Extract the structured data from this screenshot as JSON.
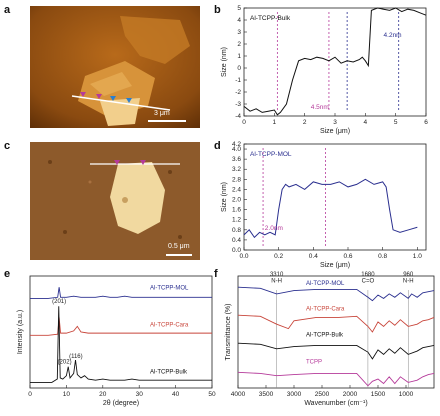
{
  "panels": {
    "a": {
      "label": "a",
      "scale_bar": "3 μm"
    },
    "b": {
      "label": "b"
    },
    "c": {
      "label": "c",
      "scale_bar": "0.5 μm"
    },
    "d": {
      "label": "d"
    },
    "e": {
      "label": "e"
    },
    "f": {
      "label": "f"
    }
  },
  "chart_data": [
    {
      "id": "b",
      "type": "line",
      "title": "Al-TCPP-Bulk",
      "xlabel": "Size (μm)",
      "ylabel": "Size (nm)",
      "xlim": [
        0,
        6
      ],
      "ylim": [
        -4,
        5
      ],
      "x_ticks": [
        "0",
        "1",
        "2",
        "3",
        "4",
        "5",
        "6"
      ],
      "y_ticks": [
        "-4",
        "-3",
        "-2",
        "-1",
        "0",
        "1",
        "2",
        "3",
        "4",
        "5"
      ],
      "series": [
        {
          "color": "#111111",
          "x": [
            0,
            0.2,
            0.4,
            0.6,
            0.8,
            1.0,
            1.1,
            1.2,
            1.4,
            1.6,
            1.8,
            2.0,
            2.2,
            2.4,
            2.6,
            2.8,
            3.0,
            3.2,
            3.4,
            3.6,
            3.8,
            3.9,
            4.0,
            4.1,
            4.2,
            4.4,
            4.6,
            4.8,
            5.0,
            5.2,
            5.4,
            5.6,
            5.8,
            6.0
          ],
          "values": [
            -3.2,
            -3.6,
            -3.4,
            -3.7,
            -3.6,
            -3.5,
            -3.9,
            -3.7,
            -3.0,
            -1.0,
            0.6,
            0.8,
            0.7,
            0.9,
            0.8,
            0.6,
            0.9,
            0.4,
            0.6,
            0.5,
            0.7,
            0.9,
            0.6,
            0.2,
            4.8,
            5.0,
            4.9,
            4.8,
            5.0,
            4.7,
            4.9,
            4.8,
            4.6,
            4.4
          ]
        }
      ],
      "annotations": [
        {
          "text": "4.5nm",
          "x": 2.2,
          "y": -3.4,
          "color": "#b53a9a"
        },
        {
          "text": "4.2nm",
          "x": 4.6,
          "y": 2.6,
          "color": "#2a2f8f"
        }
      ],
      "markers": [
        {
          "x": 1.1,
          "color": "#b53a9a"
        },
        {
          "x": 2.8,
          "color": "#b53a9a"
        },
        {
          "x": 3.4,
          "color": "#2a2f8f"
        },
        {
          "x": 5.1,
          "color": "#2a2f8f"
        }
      ]
    },
    {
      "id": "d",
      "type": "line",
      "title": "Al-TCPP-MOL",
      "xlabel": "Size (μm)",
      "ylabel": "Size (nm)",
      "xlim": [
        0,
        1.05
      ],
      "ylim": [
        0,
        4.2
      ],
      "x_ticks": [
        "0.0",
        "0.2",
        "0.4",
        "0.6",
        "0.8",
        "1.0"
      ],
      "y_ticks": [
        "0.0",
        "0.4",
        "0.8",
        "1.2",
        "1.6",
        "2.0",
        "2.4",
        "2.8",
        "3.2",
        "3.6",
        "4.0",
        "4.2"
      ],
      "series": [
        {
          "color": "#2a2f8f",
          "x": [
            0.0,
            0.03,
            0.06,
            0.09,
            0.12,
            0.15,
            0.18,
            0.2,
            0.22,
            0.24,
            0.26,
            0.3,
            0.35,
            0.4,
            0.45,
            0.5,
            0.55,
            0.6,
            0.65,
            0.7,
            0.75,
            0.8,
            0.82,
            0.84,
            0.86,
            0.9,
            0.95,
            1.0
          ],
          "values": [
            0.6,
            0.8,
            0.5,
            0.7,
            0.6,
            0.7,
            0.6,
            1.6,
            2.4,
            2.6,
            2.5,
            2.6,
            2.4,
            2.7,
            2.6,
            2.6,
            2.7,
            2.5,
            2.6,
            2.8,
            2.6,
            2.7,
            2.5,
            1.6,
            0.8,
            0.7,
            0.8,
            0.9
          ]
        }
      ],
      "annotations": [
        {
          "text": "2.0nm",
          "x": 0.12,
          "y": 0.8,
          "color": "#b53a9a"
        }
      ],
      "markers": [
        {
          "x": 0.11,
          "color": "#b53a9a"
        },
        {
          "x": 0.47,
          "color": "#b53a9a"
        }
      ]
    },
    {
      "id": "e",
      "type": "line",
      "xlabel": "2θ (degree)",
      "ylabel": "Intensity (a.u.)",
      "xlim": [
        0,
        50
      ],
      "x_ticks": [
        "0",
        "10",
        "20",
        "30",
        "40",
        "50"
      ],
      "series": [
        {
          "name": "Al-TCPP-MOL",
          "color": "#2a2f8f",
          "offset": 0.78,
          "x": [
            0,
            5,
            7.6,
            8,
            8.4,
            10,
            12,
            14,
            16,
            18,
            20,
            22,
            24,
            26,
            28,
            30,
            32,
            34,
            36,
            38,
            40,
            42,
            44,
            46,
            48,
            50
          ],
          "values": [
            0.02,
            0.02,
            0.03,
            0.12,
            0.03,
            0.03,
            0.04,
            0.03,
            0.03,
            0.03,
            0.04,
            0.03,
            0.03,
            0.04,
            0.03,
            0.03,
            0.03,
            0.03,
            0.03,
            0.03,
            0.03,
            0.03,
            0.03,
            0.03,
            0.03,
            0.03
          ]
        },
        {
          "name": "Al-TCPP-Cara",
          "color": "#c8453a",
          "offset": 0.45,
          "x": [
            0,
            5,
            7.6,
            8,
            8.4,
            10,
            12,
            13,
            14,
            16,
            18,
            20,
            22,
            24,
            26,
            28,
            30,
            32,
            34,
            36,
            38,
            40,
            42,
            44,
            46,
            48,
            50
          ],
          "values": [
            0.02,
            0.02,
            0.03,
            0.18,
            0.04,
            0.04,
            0.06,
            0.1,
            0.05,
            0.04,
            0.04,
            0.04,
            0.04,
            0.04,
            0.04,
            0.04,
            0.04,
            0.04,
            0.04,
            0.04,
            0.04,
            0.04,
            0.04,
            0.04,
            0.04,
            0.04,
            0.04
          ]
        },
        {
          "name": "Al-TCPP-Bulk",
          "color": "#111111",
          "offset": 0.03,
          "x": [
            0,
            6,
            7.5,
            7.9,
            8.3,
            9,
            10,
            10.5,
            11,
            12,
            12.5,
            13,
            14,
            15,
            16,
            18,
            20,
            22,
            24,
            26,
            28,
            30,
            32,
            34,
            36,
            38,
            40,
            42,
            44,
            46,
            48,
            50
          ],
          "values": [
            0.02,
            0.02,
            0.05,
            0.7,
            0.06,
            0.05,
            0.08,
            0.16,
            0.06,
            0.1,
            0.22,
            0.09,
            0.06,
            0.08,
            0.05,
            0.04,
            0.05,
            0.04,
            0.04,
            0.04,
            0.05,
            0.04,
            0.04,
            0.04,
            0.04,
            0.04,
            0.04,
            0.04,
            0.04,
            0.04,
            0.04,
            0.04
          ]
        }
      ],
      "annotations": [
        {
          "text": "(201)",
          "x": 8,
          "y": 0.76
        },
        {
          "text": "(202)",
          "x": 9.5,
          "y": 0.22
        },
        {
          "text": "(116)",
          "x": 12.6,
          "y": 0.27
        }
      ]
    },
    {
      "id": "f",
      "type": "line",
      "xlabel": "Wavenumber (cm⁻¹)",
      "ylabel": "Transmittance (%)",
      "xlim": [
        4000,
        500
      ],
      "x_ticks": [
        "4000",
        "3500",
        "3000",
        "2500",
        "2000",
        "1500",
        "1000"
      ],
      "series": [
        {
          "name": "Al-TCPP-MOL",
          "color": "#2a2f8f",
          "offset": 0.78,
          "x": [
            4000,
            3600,
            3310,
            3000,
            2600,
            2200,
            1880,
            1680,
            1600,
            1500,
            1400,
            1300,
            1200,
            1100,
            960,
            900,
            800,
            700,
            600,
            500
          ],
          "values": [
            0.12,
            0.11,
            0.06,
            0.09,
            0.1,
            0.1,
            0.1,
            0.03,
            0.0,
            0.05,
            0.02,
            0.06,
            0.03,
            0.07,
            0.02,
            0.06,
            0.03,
            0.07,
            0.08,
            0.09
          ]
        },
        {
          "name": "Al-TCPP-Cara",
          "color": "#c8453a",
          "offset": 0.55,
          "x": [
            4000,
            3600,
            3310,
            3100,
            3000,
            2600,
            2200,
            1880,
            1680,
            1600,
            1500,
            1400,
            1300,
            1200,
            1100,
            960,
            800,
            700,
            600,
            500
          ],
          "values": [
            0.1,
            0.09,
            0.02,
            -0.02,
            0.05,
            0.08,
            0.08,
            0.09,
            0.0,
            -0.05,
            0.04,
            0.0,
            0.05,
            0.01,
            0.06,
            0.0,
            0.02,
            0.05,
            0.06,
            0.08
          ]
        },
        {
          "name": "Al-TCPP-Bulk",
          "color": "#111111",
          "offset": 0.32,
          "x": [
            4000,
            3600,
            3310,
            3000,
            2600,
            2200,
            1880,
            1680,
            1600,
            1500,
            1400,
            1300,
            1200,
            1100,
            960,
            800,
            700,
            600,
            500
          ],
          "values": [
            0.08,
            0.07,
            0.03,
            0.05,
            0.06,
            0.06,
            0.06,
            0.0,
            -0.06,
            0.02,
            -0.02,
            0.03,
            -0.01,
            0.04,
            -0.02,
            0.01,
            0.04,
            0.05,
            0.06
          ]
        },
        {
          "name": "TCPP",
          "color": "#b53a9a",
          "offset": 0.08,
          "x": [
            4000,
            3600,
            3310,
            3000,
            2600,
            2200,
            1880,
            1680,
            1600,
            1500,
            1400,
            1300,
            1200,
            1100,
            960,
            800,
            700,
            600,
            500
          ],
          "values": [
            0.06,
            0.05,
            0.03,
            0.04,
            0.05,
            0.05,
            0.05,
            -0.06,
            -0.02,
            0.0,
            -0.04,
            0.02,
            -0.04,
            0.02,
            -0.03,
            -0.01,
            0.02,
            0.04,
            0.05
          ]
        }
      ],
      "annotations": [
        {
          "text": "3310",
          "x": 3310,
          "y": 1.0
        },
        {
          "text": "N-H",
          "x": 3310,
          "y": 0.94
        },
        {
          "text": "1680",
          "x": 1680,
          "y": 1.0
        },
        {
          "text": "C=O",
          "x": 1680,
          "y": 0.94
        },
        {
          "text": "960",
          "x": 960,
          "y": 1.0
        },
        {
          "text": "N-H",
          "x": 960,
          "y": 0.94
        }
      ]
    }
  ]
}
